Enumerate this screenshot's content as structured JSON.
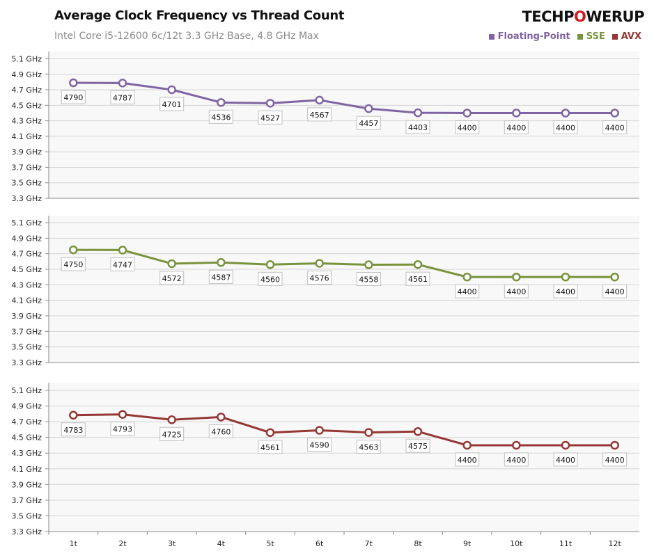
{
  "chart_data": [
    {
      "type": "line",
      "name": "Floating-Point",
      "color": "#8064a2",
      "categories": [
        "1t",
        "2t",
        "3t",
        "4t",
        "5t",
        "6t",
        "7t",
        "8t",
        "9t",
        "10t",
        "11t",
        "12t"
      ],
      "values": [
        4790,
        4787,
        4701,
        4536,
        4527,
        4567,
        4457,
        4403,
        4400,
        4400,
        4400,
        4400
      ],
      "ylim": [
        3.3,
        5.1
      ],
      "yticks": [
        "5.1 GHz",
        "4.9 GHz",
        "4.7 GHz",
        "4.5 GHz",
        "4.3 GHz",
        "4.1 GHz",
        "3.9 GHz",
        "3.7 GHz",
        "3.5 GHz",
        "3.3 GHz"
      ],
      "grid": true
    },
    {
      "type": "line",
      "name": "SSE",
      "color": "#77933c",
      "categories": [
        "1t",
        "2t",
        "3t",
        "4t",
        "5t",
        "6t",
        "7t",
        "8t",
        "9t",
        "10t",
        "11t",
        "12t"
      ],
      "values": [
        4750,
        4747,
        4572,
        4587,
        4560,
        4576,
        4558,
        4561,
        4400,
        4400,
        4400,
        4400
      ],
      "ylim": [
        3.3,
        5.1
      ],
      "yticks": [
        "5.1 GHz",
        "4.9 GHz",
        "4.7 GHz",
        "4.5 GHz",
        "4.3 GHz",
        "4.1 GHz",
        "3.9 GHz",
        "3.7 GHz",
        "3.5 GHz",
        "3.3 GHz"
      ],
      "grid": true
    },
    {
      "type": "line",
      "name": "AVX",
      "color": "#953735",
      "categories": [
        "1t",
        "2t",
        "3t",
        "4t",
        "5t",
        "6t",
        "7t",
        "8t",
        "9t",
        "10t",
        "11t",
        "12t"
      ],
      "values": [
        4783,
        4793,
        4725,
        4760,
        4561,
        4590,
        4563,
        4575,
        4400,
        4400,
        4400,
        4400
      ],
      "ylim": [
        3.3,
        5.1
      ],
      "yticks": [
        "5.1 GHz",
        "4.9 GHz",
        "4.7 GHz",
        "4.5 GHz",
        "4.3 GHz",
        "4.1 GHz",
        "3.9 GHz",
        "3.7 GHz",
        "3.5 GHz",
        "3.3 GHz"
      ],
      "grid": true
    }
  ],
  "title": "Average Clock Frequency vs Thread Count",
  "subtitle": "Intel Core i5-12600 6c/12t 3.3 GHz Base,  4.8 GHz Max",
  "logo": {
    "part1": "TECHP",
    "part2": "O",
    "part3": "WERUP"
  },
  "legend": [
    {
      "label": "Floating-Point",
      "color": "#8064a2"
    },
    {
      "label": "SSE",
      "color": "#77933c"
    },
    {
      "label": "AVX",
      "color": "#953735"
    }
  ],
  "legend_position": "top-right"
}
